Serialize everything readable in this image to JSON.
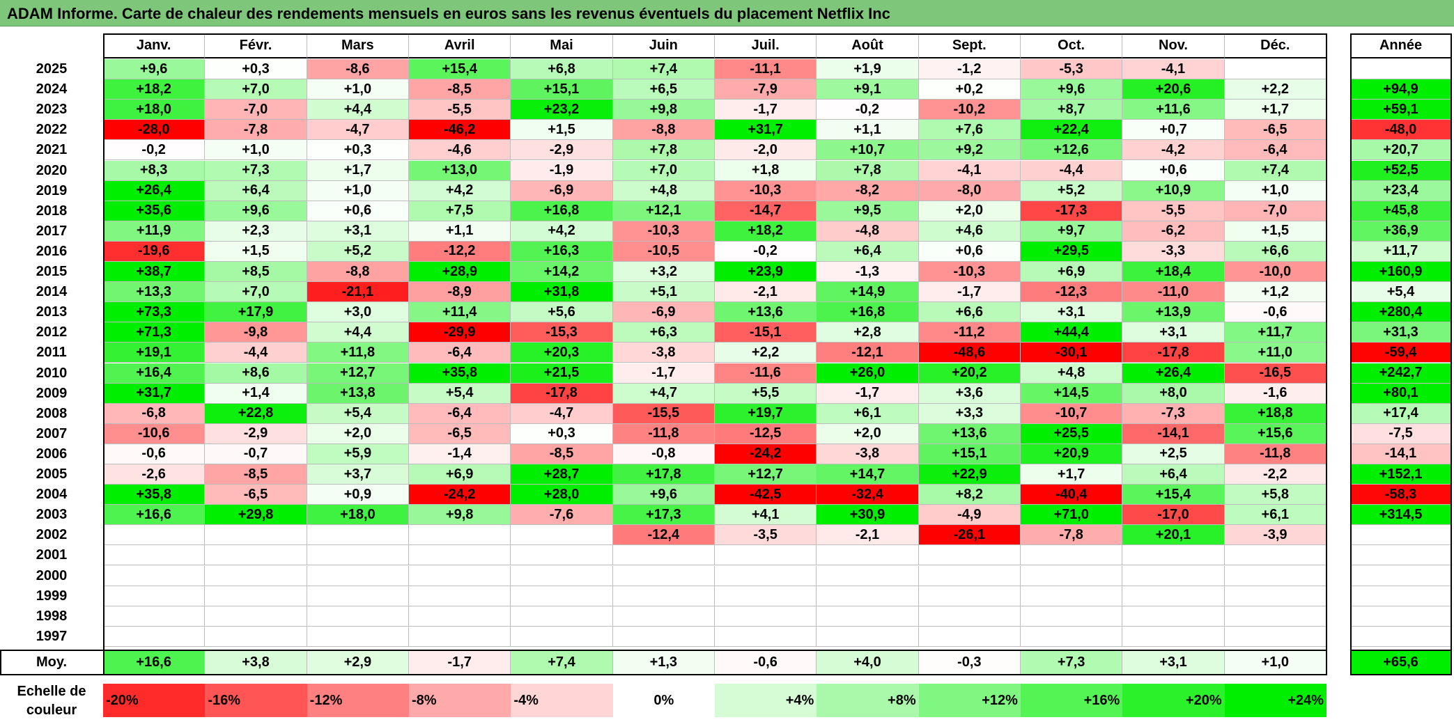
{
  "title": "ADAM Informe. Carte de chaleur des rendements mensuels en euros sans les revenus éventuels du placement Netflix Inc",
  "chart_data": {
    "type": "heatmap",
    "title": "ADAM Informe. Carte de chaleur des rendements mensuels en euros sans les revenus éventuels du placement Netflix Inc",
    "months": [
      "Janv.",
      "Févr.",
      "Mars",
      "Avril",
      "Mai",
      "Juin",
      "Juil.",
      "Août",
      "Sept.",
      "Oct.",
      "Nov.",
      "Déc."
    ],
    "year_header": "Année",
    "rows": [
      {
        "year": "2025",
        "values": [
          "+9,6",
          "+0,3",
          "-8,6",
          "+15,4",
          "+6,8",
          "+7,4",
          "-11,1",
          "+1,9",
          "-1,2",
          "-5,3",
          "-4,1",
          ""
        ],
        "annual": ""
      },
      {
        "year": "2024",
        "values": [
          "+18,2",
          "+7,0",
          "+1,0",
          "-8,5",
          "+15,1",
          "+6,5",
          "-7,9",
          "+9,1",
          "+0,2",
          "+9,6",
          "+20,6",
          "+2,2"
        ],
        "annual": "+94,9"
      },
      {
        "year": "2023",
        "values": [
          "+18,0",
          "-7,0",
          "+4,4",
          "-5,5",
          "+23,2",
          "+9,8",
          "-1,7",
          "-0,2",
          "-10,2",
          "+8,7",
          "+11,6",
          "+1,7"
        ],
        "annual": "+59,1"
      },
      {
        "year": "2022",
        "values": [
          "-28,0",
          "-7,8",
          "-4,7",
          "-46,2",
          "+1,5",
          "-8,8",
          "+31,7",
          "+1,1",
          "+7,6",
          "+22,4",
          "+0,7",
          "-6,5"
        ],
        "annual": "-48,0"
      },
      {
        "year": "2021",
        "values": [
          "-0,2",
          "+1,0",
          "+0,3",
          "-4,6",
          "-2,9",
          "+7,8",
          "-2,0",
          "+10,7",
          "+9,2",
          "+12,6",
          "-4,2",
          "-6,4"
        ],
        "annual": "+20,7"
      },
      {
        "year": "2020",
        "values": [
          "+8,3",
          "+7,3",
          "+1,7",
          "+13,0",
          "-1,9",
          "+7,0",
          "+1,8",
          "+7,8",
          "-4,1",
          "-4,4",
          "+0,6",
          "+7,4"
        ],
        "annual": "+52,5"
      },
      {
        "year": "2019",
        "values": [
          "+26,4",
          "+6,4",
          "+1,0",
          "+4,2",
          "-6,9",
          "+4,8",
          "-10,3",
          "-8,2",
          "-8,0",
          "+5,2",
          "+10,9",
          "+1,0"
        ],
        "annual": "+23,4"
      },
      {
        "year": "2018",
        "values": [
          "+35,6",
          "+9,6",
          "+0,6",
          "+7,5",
          "+16,8",
          "+12,1",
          "-14,7",
          "+9,5",
          "+2,0",
          "-17,3",
          "-5,5",
          "-7,0"
        ],
        "annual": "+45,8"
      },
      {
        "year": "2017",
        "values": [
          "+11,9",
          "+2,3",
          "+3,1",
          "+1,1",
          "+4,2",
          "-10,3",
          "+18,2",
          "-4,8",
          "+4,6",
          "+9,7",
          "-6,2",
          "+1,5"
        ],
        "annual": "+36,9"
      },
      {
        "year": "2016",
        "values": [
          "-19,6",
          "+1,5",
          "+5,2",
          "-12,2",
          "+16,3",
          "-10,5",
          "-0,2",
          "+6,4",
          "+0,6",
          "+29,5",
          "-3,3",
          "+6,6"
        ],
        "annual": "+11,7"
      },
      {
        "year": "2015",
        "values": [
          "+38,7",
          "+8,5",
          "-8,8",
          "+28,9",
          "+14,2",
          "+3,2",
          "+23,9",
          "-1,3",
          "-10,3",
          "+6,9",
          "+18,4",
          "-10,0"
        ],
        "annual": "+160,9"
      },
      {
        "year": "2014",
        "values": [
          "+13,3",
          "+7,0",
          "-21,1",
          "-8,9",
          "+31,8",
          "+5,1",
          "-2,1",
          "+14,9",
          "-1,7",
          "-12,3",
          "-11,0",
          "+1,2"
        ],
        "annual": "+5,4"
      },
      {
        "year": "2013",
        "values": [
          "+73,3",
          "+17,9",
          "+3,0",
          "+11,4",
          "+5,6",
          "-6,9",
          "+13,6",
          "+16,8",
          "+6,6",
          "+3,1",
          "+13,9",
          "-0,6"
        ],
        "annual": "+280,4"
      },
      {
        "year": "2012",
        "values": [
          "+71,3",
          "-9,8",
          "+4,4",
          "-29,9",
          "-15,3",
          "+6,3",
          "-15,1",
          "+2,8",
          "-11,2",
          "+44,4",
          "+3,1",
          "+11,7"
        ],
        "annual": "+31,3"
      },
      {
        "year": "2011",
        "values": [
          "+19,1",
          "-4,4",
          "+11,8",
          "-6,4",
          "+20,3",
          "-3,8",
          "+2,2",
          "-12,1",
          "-48,6",
          "-30,1",
          "-17,8",
          "+11,0"
        ],
        "annual": "-59,4"
      },
      {
        "year": "2010",
        "values": [
          "+16,4",
          "+8,6",
          "+12,7",
          "+35,8",
          "+21,5",
          "-1,7",
          "-11,6",
          "+26,0",
          "+20,2",
          "+4,8",
          "+26,4",
          "-16,5"
        ],
        "annual": "+242,7"
      },
      {
        "year": "2009",
        "values": [
          "+31,7",
          "+1,4",
          "+13,8",
          "+5,4",
          "-17,8",
          "+4,7",
          "+5,5",
          "-1,7",
          "+3,6",
          "+14,5",
          "+8,0",
          "-1,6"
        ],
        "annual": "+80,1"
      },
      {
        "year": "2008",
        "values": [
          "-6,8",
          "+22,8",
          "+5,4",
          "-6,4",
          "-4,7",
          "-15,5",
          "+19,7",
          "+6,1",
          "+3,3",
          "-10,7",
          "-7,3",
          "+18,8"
        ],
        "annual": "+17,4"
      },
      {
        "year": "2007",
        "values": [
          "-10,6",
          "-2,9",
          "+2,0",
          "-6,5",
          "+0,3",
          "-11,8",
          "-12,5",
          "+2,0",
          "+13,6",
          "+25,5",
          "-14,1",
          "+15,6"
        ],
        "annual": "-7,5"
      },
      {
        "year": "2006",
        "values": [
          "-0,6",
          "-0,7",
          "+5,9",
          "-1,4",
          "-8,5",
          "-0,8",
          "-24,2",
          "-3,8",
          "+15,1",
          "+20,9",
          "+2,5",
          "-11,8"
        ],
        "annual": "-14,1"
      },
      {
        "year": "2005",
        "values": [
          "-2,6",
          "-8,5",
          "+3,7",
          "+6,9",
          "+28,7",
          "+17,8",
          "+12,7",
          "+14,7",
          "+22,9",
          "+1,7",
          "+6,4",
          "-2,2"
        ],
        "annual": "+152,1"
      },
      {
        "year": "2004",
        "values": [
          "+35,8",
          "-6,5",
          "+0,9",
          "-24,2",
          "+28,0",
          "+9,6",
          "-42,5",
          "-32,4",
          "+8,2",
          "-40,4",
          "+15,4",
          "+5,8"
        ],
        "annual": "-58,3"
      },
      {
        "year": "2003",
        "values": [
          "+16,6",
          "+29,8",
          "+18,0",
          "+9,8",
          "-7,6",
          "+17,3",
          "+4,1",
          "+30,9",
          "-4,9",
          "+71,0",
          "-17,0",
          "+6,1"
        ],
        "annual": "+314,5"
      },
      {
        "year": "2002",
        "values": [
          "",
          "",
          "",
          "",
          "",
          "-12,4",
          "-3,5",
          "-2,1",
          "-26,1",
          "-7,8",
          "+20,1",
          "-3,9"
        ],
        "annual": ""
      },
      {
        "year": "2001",
        "values": [
          "",
          "",
          "",
          "",
          "",
          "",
          "",
          "",
          "",
          "",
          "",
          ""
        ],
        "annual": ""
      },
      {
        "year": "2000",
        "values": [
          "",
          "",
          "",
          "",
          "",
          "",
          "",
          "",
          "",
          "",
          "",
          ""
        ],
        "annual": ""
      },
      {
        "year": "1999",
        "values": [
          "",
          "",
          "",
          "",
          "",
          "",
          "",
          "",
          "",
          "",
          "",
          ""
        ],
        "annual": ""
      },
      {
        "year": "1998",
        "values": [
          "",
          "",
          "",
          "",
          "",
          "",
          "",
          "",
          "",
          "",
          "",
          ""
        ],
        "annual": ""
      },
      {
        "year": "1997",
        "values": [
          "",
          "",
          "",
          "",
          "",
          "",
          "",
          "",
          "",
          "",
          "",
          ""
        ],
        "annual": ""
      }
    ],
    "average": {
      "label": "Moy.",
      "values": [
        "+16,6",
        "+3,8",
        "+2,9",
        "-1,7",
        "+7,4",
        "+1,3",
        "-0,6",
        "+4,0",
        "-0,3",
        "+7,3",
        "+3,1",
        "+1,0"
      ],
      "annual": "+65,6"
    },
    "scale": {
      "label_line1": "Echelle de",
      "label_line2": "couleur",
      "steps": [
        {
          "label": "-20%",
          "value": -20
        },
        {
          "label": "-16%",
          "value": -16
        },
        {
          "label": "-12%",
          "value": -12
        },
        {
          "label": "-8%",
          "value": -8
        },
        {
          "label": "-4%",
          "value": -4
        },
        {
          "label": "0%",
          "value": 0
        },
        {
          "label": "+4%",
          "value": 4
        },
        {
          "label": "+8%",
          "value": 8
        },
        {
          "label": "+12%",
          "value": 12
        },
        {
          "label": "+16%",
          "value": 16
        },
        {
          "label": "+20%",
          "value": 20
        },
        {
          "label": "+24%",
          "value": 24
        }
      ]
    },
    "colors": {
      "negative_max": "#ff0000",
      "neutral": "#ffffff",
      "positive_max": "#00ee00"
    }
  }
}
